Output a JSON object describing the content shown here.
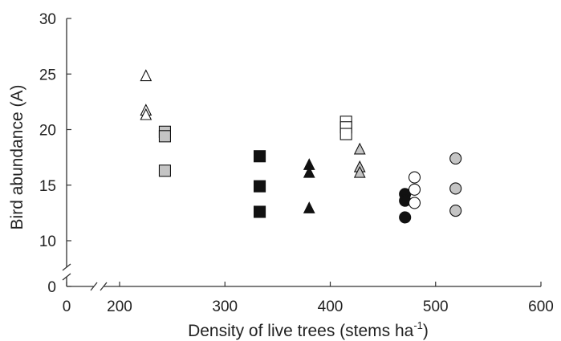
{
  "chart_data": {
    "type": "scatter",
    "title": "",
    "xlabel_main": "Density of live trees (stems ha",
    "xlabel_sup": "-1",
    "xlabel_close": ")",
    "ylabel": "Bird abundance (A)",
    "xlim": [
      0,
      600
    ],
    "ylim_upper": [
      10,
      30
    ],
    "ylim_lower": [
      0,
      0
    ],
    "x_ticks": [
      0,
      200,
      300,
      400,
      500,
      600
    ],
    "x_tick_labels": [
      "0",
      "200",
      "300",
      "400",
      "500",
      "600"
    ],
    "y_ticks": [
      0,
      10,
      15,
      20,
      25,
      30
    ],
    "y_tick_labels": [
      "0",
      "10",
      "15",
      "20",
      "25",
      "30"
    ],
    "x_break_between": [
      0,
      200
    ],
    "y_break_between": [
      0,
      10
    ],
    "grid": false,
    "legend": "none",
    "colors": {
      "black": "#111111",
      "gray": "#c4c4c4",
      "white": "#ffffff",
      "stroke": "#111111"
    },
    "series": [
      {
        "marker": "triangle",
        "fill": "white",
        "points": [
          [
            225,
            24.8
          ],
          [
            225,
            21.7
          ],
          [
            225,
            21.3
          ]
        ]
      },
      {
        "marker": "square",
        "fill": "gray",
        "points": [
          [
            243,
            19.8
          ],
          [
            243,
            19.4
          ],
          [
            243,
            16.3
          ]
        ]
      },
      {
        "marker": "square",
        "fill": "black",
        "points": [
          [
            333,
            17.6
          ],
          [
            333,
            14.9
          ],
          [
            333,
            12.6
          ]
        ]
      },
      {
        "marker": "triangle",
        "fill": "black",
        "points": [
          [
            380,
            16.8
          ],
          [
            380,
            16.1
          ],
          [
            380,
            12.9
          ]
        ]
      },
      {
        "marker": "square",
        "fill": "white",
        "points": [
          [
            415,
            20.7
          ],
          [
            415,
            20.2
          ],
          [
            415,
            19.6
          ]
        ]
      },
      {
        "marker": "triangle",
        "fill": "gray",
        "points": [
          [
            428,
            18.2
          ],
          [
            428,
            16.6
          ],
          [
            428,
            16.1
          ]
        ]
      },
      {
        "marker": "circle",
        "fill": "black",
        "points": [
          [
            471,
            14.2
          ],
          [
            471,
            13.6
          ],
          [
            471,
            12.1
          ]
        ]
      },
      {
        "marker": "circle",
        "fill": "white",
        "points": [
          [
            480,
            15.7
          ],
          [
            480,
            14.6
          ],
          [
            480,
            13.4
          ]
        ]
      },
      {
        "marker": "circle",
        "fill": "gray",
        "points": [
          [
            519,
            17.4
          ],
          [
            519,
            14.7
          ],
          [
            519,
            12.7
          ]
        ]
      }
    ]
  }
}
